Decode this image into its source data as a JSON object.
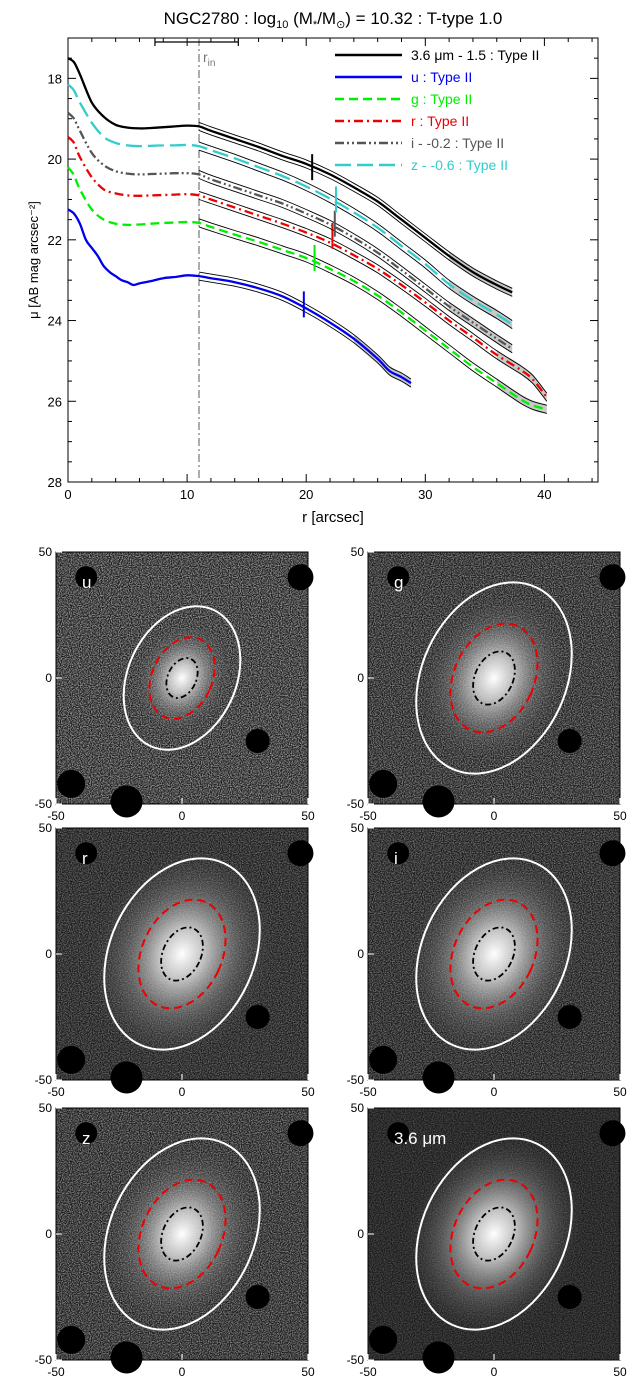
{
  "chart_data": [
    {
      "type": "line",
      "title": "NGC2780 : log10 (M*/M⊙) = 10.32 : T-type 1.0",
      "title_parts": {
        "pre": "NGC2780 : log",
        "sub": "10",
        "mid": " (M",
        "star": "*",
        "slash": "/M",
        "sun": "⊙",
        "post": ") = 10.32 : T-type 1.0"
      },
      "xlabel": "r [arcsec]",
      "ylabel": "μ [AB mag arcsec⁻²]",
      "xlim": [
        0,
        44.5
      ],
      "ylim": [
        28,
        17
      ],
      "y_inverted": true,
      "xticks": [
        0,
        10,
        20,
        30,
        40
      ],
      "yticks": [
        18,
        20,
        22,
        24,
        26,
        28
      ],
      "grid": false,
      "legend_position": "top-right",
      "r_in": 11.0,
      "r_in_label": "r",
      "r_in_label_sub": "in",
      "r_in_error_bar": [
        7.3,
        14.3
      ],
      "series": [
        {
          "name": "3.6 μm - 1.5 : Type II",
          "color": "#000000",
          "dash": "solid",
          "x": [
            0,
            0.5,
            1,
            2,
            3,
            4,
            5,
            6,
            7,
            8,
            9,
            10,
            11,
            12,
            14,
            16,
            18,
            20,
            22,
            24,
            26,
            28,
            30,
            32,
            34,
            36,
            37.3
          ],
          "y": [
            17.5,
            17.6,
            17.9,
            18.6,
            18.95,
            19.15,
            19.22,
            19.24,
            19.23,
            19.21,
            19.19,
            19.17,
            19.19,
            19.3,
            19.5,
            19.7,
            19.92,
            20.12,
            20.38,
            20.7,
            21.05,
            21.5,
            21.95,
            22.4,
            22.8,
            23.12,
            23.3
          ],
          "break_r": 20.5,
          "break_mu": 20.2
        },
        {
          "name": "u : Type II",
          "color": "#0000ee",
          "dash": "solid",
          "x": [
            0,
            0.5,
            1,
            1.5,
            2,
            2.5,
            3,
            3.5,
            4,
            4.5,
            5,
            5.5,
            6,
            7,
            8,
            9,
            10,
            11,
            12,
            14,
            16,
            18,
            20,
            22,
            24,
            26,
            27,
            28,
            28.8
          ],
          "y": [
            21.25,
            21.35,
            21.6,
            22.0,
            22.2,
            22.4,
            22.65,
            22.8,
            22.9,
            23.0,
            23.05,
            23.12,
            23.08,
            23.02,
            22.95,
            22.92,
            22.88,
            22.9,
            22.95,
            23.05,
            23.2,
            23.4,
            23.7,
            24.05,
            24.45,
            24.95,
            25.25,
            25.4,
            25.55
          ],
          "break_r": 19.8,
          "break_mu": 23.6
        },
        {
          "name": "g : Type II",
          "color": "#00ee00",
          "dash": "dash",
          "x": [
            0,
            0.5,
            1,
            2,
            3,
            4,
            5,
            6,
            7,
            8,
            9,
            10,
            11,
            12,
            14,
            16,
            18,
            20,
            22,
            24,
            26,
            28,
            30,
            32,
            34,
            36,
            38,
            39,
            40.2
          ],
          "y": [
            20.2,
            20.4,
            20.75,
            21.25,
            21.5,
            21.6,
            21.63,
            21.62,
            21.6,
            21.58,
            21.57,
            21.56,
            21.58,
            21.68,
            21.87,
            22.05,
            22.25,
            22.45,
            22.72,
            23.02,
            23.38,
            23.8,
            24.25,
            24.7,
            25.15,
            25.55,
            25.95,
            26.1,
            26.2
          ],
          "break_r": 20.7,
          "break_mu": 22.45
        },
        {
          "name": "r : Type II",
          "color": "#ee0000",
          "dash": "dashdot",
          "x": [
            0,
            0.5,
            1,
            2,
            3,
            4,
            5,
            6,
            7,
            8,
            9,
            10,
            11,
            12,
            14,
            16,
            18,
            20,
            22,
            24,
            26,
            28,
            30,
            32,
            34,
            36,
            38,
            39,
            40.2
          ],
          "y": [
            19.45,
            19.6,
            19.95,
            20.45,
            20.75,
            20.85,
            20.9,
            20.91,
            20.9,
            20.89,
            20.88,
            20.87,
            20.9,
            21.0,
            21.2,
            21.4,
            21.6,
            21.82,
            22.07,
            22.38,
            22.72,
            23.12,
            23.55,
            24.0,
            24.42,
            24.85,
            25.22,
            25.45,
            25.9
          ],
          "break_r": 22.2,
          "break_mu": 21.9
        },
        {
          "name": "i - -0.2 : Type II",
          "color": "#555555",
          "dash": "dashdotdot",
          "x": [
            0,
            0.5,
            1,
            2,
            3,
            4,
            5,
            6,
            7,
            8,
            9,
            10,
            11,
            12,
            14,
            16,
            18,
            20,
            22,
            24,
            26,
            28,
            30,
            32,
            34,
            36,
            37.3
          ],
          "y": [
            18.85,
            19.0,
            19.3,
            19.85,
            20.15,
            20.3,
            20.36,
            20.38,
            20.37,
            20.36,
            20.35,
            20.35,
            20.38,
            20.5,
            20.7,
            20.9,
            21.1,
            21.35,
            21.62,
            21.95,
            22.32,
            22.75,
            23.2,
            23.65,
            24.05,
            24.45,
            24.7
          ],
          "break_r": 22.4,
          "break_mu": 21.6
        },
        {
          "name": "z - -0.6 : Type II",
          "color": "#33cccc",
          "dash": "longdash",
          "x": [
            0,
            0.5,
            1,
            2,
            3,
            4,
            5,
            6,
            7,
            8,
            9,
            10,
            11,
            12,
            14,
            16,
            18,
            20,
            22,
            24,
            26,
            28,
            30,
            32,
            34,
            36,
            37.3
          ],
          "y": [
            18.15,
            18.3,
            18.6,
            19.1,
            19.45,
            19.6,
            19.66,
            19.68,
            19.67,
            19.66,
            19.66,
            19.65,
            19.68,
            19.78,
            19.98,
            20.2,
            20.42,
            20.68,
            20.98,
            21.32,
            21.7,
            22.15,
            22.6,
            23.1,
            23.5,
            23.85,
            24.1
          ],
          "break_r": 22.5,
          "break_mu": 21.0
        }
      ]
    },
    {
      "type": "image-panels",
      "xlim": [
        -50,
        50
      ],
      "ylim": [
        -50,
        50
      ],
      "xticks": [
        -50,
        0,
        50
      ],
      "yticks": [
        -50,
        0,
        50
      ],
      "panels": [
        {
          "label": "u",
          "noise": 0.9,
          "glow": 0.55,
          "label_color": "#ffffff"
        },
        {
          "label": "g",
          "noise": 0.75,
          "glow": 0.8,
          "label_color": "#ffffff"
        },
        {
          "label": "r",
          "noise": 0.55,
          "glow": 1.0,
          "label_color": "#ffffff"
        },
        {
          "label": "i",
          "noise": 0.6,
          "glow": 0.95,
          "label_color": "#ffffff"
        },
        {
          "label": "z",
          "noise": 0.75,
          "glow": 0.85,
          "label_color": "#ffffff"
        },
        {
          "label": "3.6 μm",
          "noise": 0.35,
          "glow": 0.95,
          "label_color": "#ffffff"
        }
      ],
      "ellipse_colors": {
        "outer": "#ffffff",
        "middle": "#ee0000",
        "inner": "#000000"
      }
    }
  ]
}
